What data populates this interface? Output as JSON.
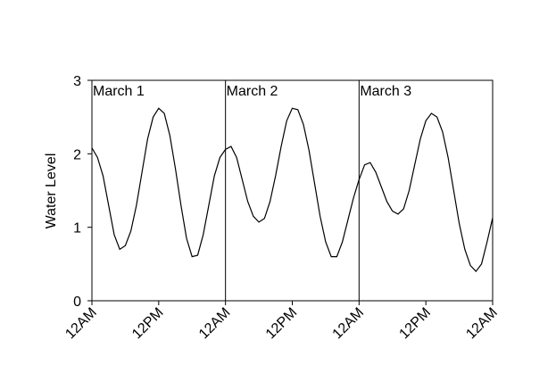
{
  "chart_data": {
    "type": "line",
    "y_label": "Water Level",
    "x": [
      0,
      1,
      2,
      3,
      4,
      5,
      6,
      7,
      8,
      9,
      10,
      11,
      12,
      13,
      14,
      15,
      16,
      17,
      18,
      19,
      20,
      21,
      22,
      23,
      24,
      25,
      26,
      27,
      28,
      29,
      30,
      31,
      32,
      33,
      34,
      35,
      36,
      37,
      38,
      39,
      40,
      41,
      42,
      43,
      44,
      45,
      46,
      47,
      48,
      49,
      50,
      51,
      52,
      53,
      54,
      55,
      56,
      57,
      58,
      59,
      60,
      61,
      62,
      63,
      64,
      65,
      66,
      67,
      68,
      69,
      70,
      71,
      72
    ],
    "series": [
      {
        "name": "Water Level",
        "color": "#000000",
        "values": [
          2.08,
          1.95,
          1.7,
          1.3,
          0.9,
          0.7,
          0.75,
          0.95,
          1.3,
          1.75,
          2.2,
          2.5,
          2.62,
          2.55,
          2.25,
          1.8,
          1.3,
          0.85,
          0.6,
          0.62,
          0.9,
          1.3,
          1.7,
          1.95,
          2.06,
          2.1,
          1.95,
          1.65,
          1.35,
          1.15,
          1.07,
          1.12,
          1.35,
          1.7,
          2.1,
          2.45,
          2.62,
          2.6,
          2.4,
          2.05,
          1.6,
          1.15,
          0.8,
          0.6,
          0.6,
          0.8,
          1.1,
          1.4,
          1.65,
          1.85,
          1.88,
          1.75,
          1.55,
          1.35,
          1.22,
          1.18,
          1.25,
          1.5,
          1.85,
          2.2,
          2.45,
          2.55,
          2.5,
          2.3,
          1.95,
          1.5,
          1.05,
          0.7,
          0.48,
          0.4,
          0.5,
          0.8,
          1.13
        ]
      }
    ],
    "xlim": [
      0,
      72
    ],
    "xticks": [
      {
        "value": 0,
        "label": "12AM"
      },
      {
        "value": 12,
        "label": "12PM"
      },
      {
        "value": 24,
        "label": "12AM"
      },
      {
        "value": 36,
        "label": "12PM"
      },
      {
        "value": 48,
        "label": "12AM"
      },
      {
        "value": 60,
        "label": "12PM"
      },
      {
        "value": 72,
        "label": "12AM"
      }
    ],
    "ylim": [
      0,
      3
    ],
    "yticks": [
      0,
      1,
      2,
      3
    ],
    "annotations": [
      {
        "text": "March 1",
        "x": 0
      },
      {
        "text": "March 2",
        "x": 24
      },
      {
        "text": "March 3",
        "x": 48
      }
    ]
  }
}
